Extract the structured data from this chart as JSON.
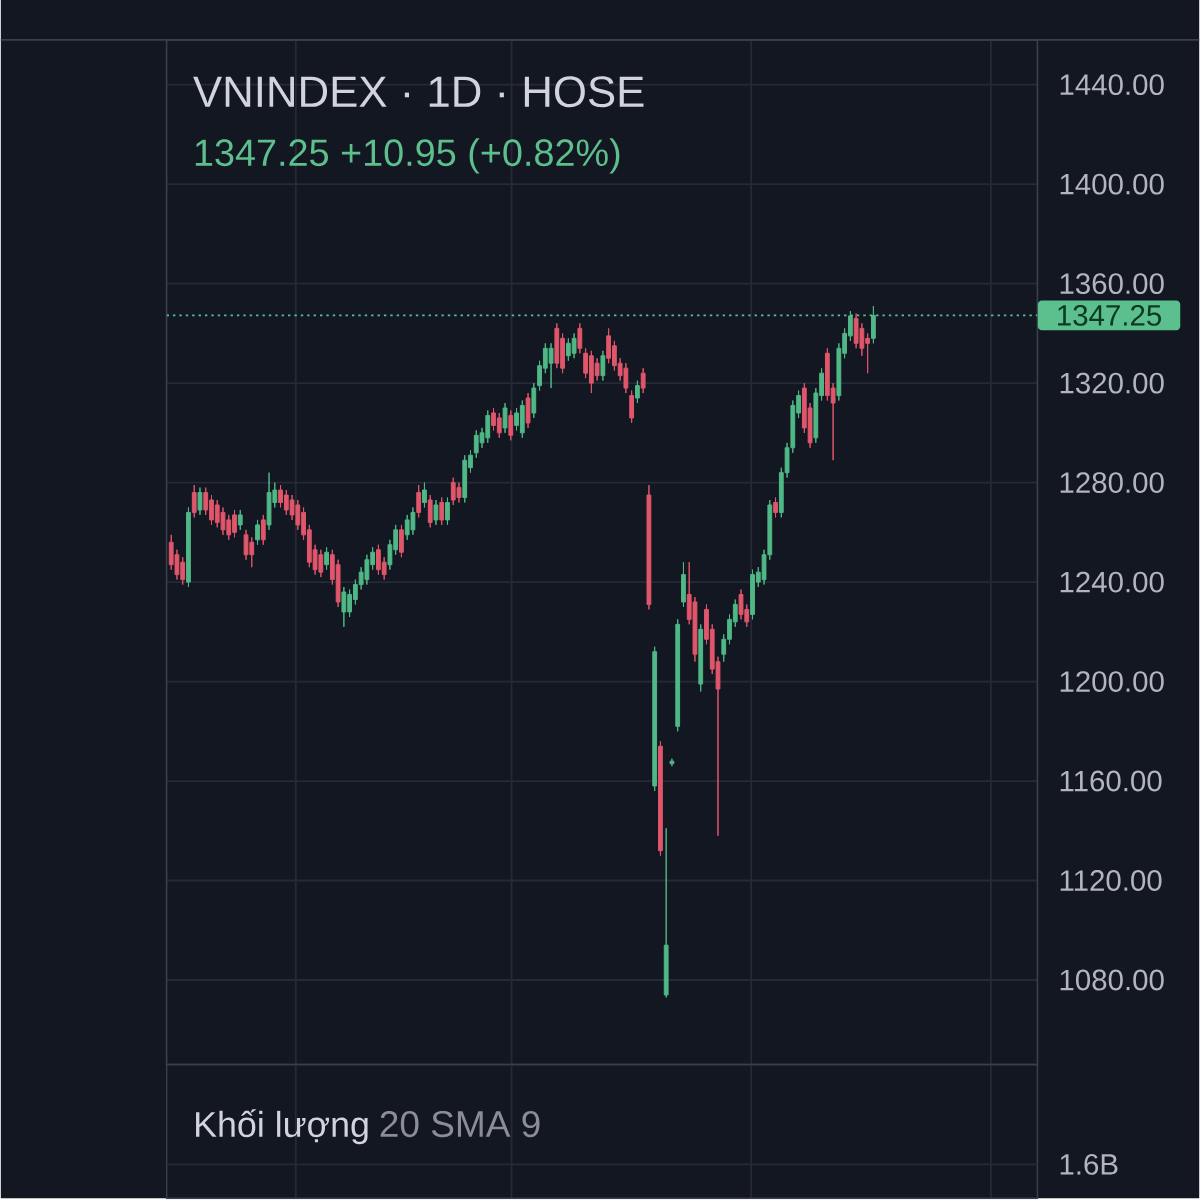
{
  "chart_data": [
    {
      "type": "candlestick",
      "title": "VNINDEX · 1D · HOSE",
      "subtitle": "1347.25 +10.95 (+0.82%)",
      "categories": [
        null,
        null,
        null,
        null,
        null,
        null,
        null,
        null,
        null,
        null,
        null,
        null,
        null,
        null,
        null,
        null,
        null,
        null,
        null,
        null,
        null,
        null,
        null,
        null,
        null,
        null,
        null,
        null,
        null,
        null,
        null,
        null,
        null,
        null,
        null,
        null,
        null,
        null,
        null,
        null,
        null,
        null,
        null,
        null,
        null,
        null,
        null,
        null,
        null,
        null,
        null,
        null,
        null,
        null,
        null,
        null,
        null,
        null,
        null,
        null,
        null,
        null,
        null,
        null,
        null,
        null,
        null,
        null,
        null,
        null,
        null,
        null,
        null,
        null,
        null,
        null,
        null,
        null,
        null,
        null,
        null,
        null,
        null,
        null,
        null,
        null,
        null,
        null,
        null,
        null,
        null,
        null,
        null,
        null,
        null,
        null,
        null,
        null,
        null,
        null,
        null,
        null,
        null,
        null,
        null,
        null,
        null,
        null,
        null,
        null,
        null,
        null,
        null,
        null,
        null,
        null,
        null,
        null,
        null,
        null,
        null,
        null,
        null,
        null,
        null,
        null,
        null,
        null,
        null,
        null,
        null,
        null,
        null,
        null,
        null,
        null,
        null,
        null,
        null,
        null,
        null,
        null,
        null,
        null,
        null,
        null,
        null,
        null,
        null,
        null,
        null
      ],
      "ohlc": [
        [
          1256,
          1259,
          1245,
          1247
        ],
        [
          1251,
          1253,
          1241,
          1243
        ],
        [
          1248,
          1250,
          1239,
          1241
        ],
        [
          1240,
          1270,
          1238,
          1268
        ],
        [
          1276,
          1279,
          1266,
          1268
        ],
        [
          1269,
          1278,
          1267,
          1276
        ],
        [
          1276,
          1278,
          1267,
          1269
        ],
        [
          1273,
          1275,
          1263,
          1265
        ],
        [
          1271,
          1273,
          1262,
          1264
        ],
        [
          1268,
          1270,
          1259,
          1261
        ],
        [
          1265,
          1267,
          1257,
          1259
        ],
        [
          1267,
          1269,
          1258,
          1260
        ],
        [
          1263,
          1269,
          1261,
          1267
        ],
        [
          1259,
          1261,
          1249,
          1251
        ],
        [
          1256,
          1258,
          1246,
          1251
        ],
        [
          1257,
          1265,
          1255,
          1263
        ],
        [
          1265,
          1267,
          1255,
          1257
        ],
        [
          1263,
          1284,
          1261,
          1276
        ],
        [
          1272,
          1280,
          1270,
          1277
        ],
        [
          1277,
          1279,
          1270,
          1272
        ],
        [
          1275,
          1277,
          1267,
          1269
        ],
        [
          1273,
          1275,
          1265,
          1267
        ],
        [
          1271,
          1273,
          1261,
          1263
        ],
        [
          1268,
          1270,
          1257,
          1259
        ],
        [
          1261,
          1263,
          1246,
          1248
        ],
        [
          1253,
          1255,
          1243,
          1245
        ],
        [
          1251,
          1253,
          1242,
          1244
        ],
        [
          1247,
          1254,
          1245,
          1252
        ],
        [
          1251,
          1253,
          1239,
          1241
        ],
        [
          1247,
          1249,
          1230,
          1232
        ],
        [
          1228,
          1238,
          1222,
          1236
        ],
        [
          1228,
          1237,
          1226,
          1235
        ],
        [
          1233,
          1241,
          1231,
          1239
        ],
        [
          1239,
          1246,
          1237,
          1244
        ],
        [
          1241,
          1251,
          1239,
          1249
        ],
        [
          1247,
          1254,
          1245,
          1252
        ],
        [
          1253,
          1255,
          1243,
          1245
        ],
        [
          1248,
          1250,
          1241,
          1243
        ],
        [
          1247,
          1257,
          1245,
          1255
        ],
        [
          1253,
          1263,
          1251,
          1261
        ],
        [
          1261,
          1263,
          1250,
          1252
        ],
        [
          1259,
          1267,
          1257,
          1265
        ],
        [
          1261,
          1270,
          1259,
          1268
        ],
        [
          1276,
          1279,
          1266,
          1268
        ],
        [
          1272,
          1280,
          1270,
          1277
        ],
        [
          1273,
          1275,
          1262,
          1264
        ],
        [
          1265,
          1273,
          1263,
          1271
        ],
        [
          1272,
          1274,
          1263,
          1265
        ],
        [
          1265,
          1274,
          1263,
          1272
        ],
        [
          1280,
          1282,
          1271,
          1273
        ],
        [
          1278,
          1280,
          1272,
          1274
        ],
        [
          1274,
          1291,
          1272,
          1289
        ],
        [
          1286,
          1293,
          1284,
          1291
        ],
        [
          1292,
          1301,
          1290,
          1299
        ],
        [
          1296,
          1302,
          1294,
          1300
        ],
        [
          1298,
          1309,
          1296,
          1307
        ],
        [
          1308,
          1310,
          1301,
          1303
        ],
        [
          1306,
          1308,
          1298,
          1300
        ],
        [
          1302,
          1312,
          1300,
          1310
        ],
        [
          1307,
          1309,
          1297,
          1299
        ],
        [
          1303,
          1310,
          1301,
          1308
        ],
        [
          1300,
          1313,
          1298,
          1311
        ],
        [
          1314,
          1316,
          1302,
          1304
        ],
        [
          1308,
          1320,
          1306,
          1318
        ],
        [
          1319,
          1329,
          1317,
          1327
        ],
        [
          1326,
          1336,
          1324,
          1334
        ],
        [
          1328,
          1336,
          1318,
          1334
        ],
        [
          1342,
          1344,
          1326,
          1328
        ],
        [
          1338,
          1340,
          1324,
          1326
        ],
        [
          1331,
          1338,
          1329,
          1336
        ],
        [
          1332,
          1340,
          1330,
          1338
        ],
        [
          1342,
          1344,
          1332,
          1334
        ],
        [
          1332,
          1334,
          1322,
          1324
        ],
        [
          1331,
          1333,
          1316,
          1320
        ],
        [
          1328,
          1330,
          1321,
          1323
        ],
        [
          1323,
          1333,
          1321,
          1331
        ],
        [
          1339,
          1342,
          1328,
          1330
        ],
        [
          1335,
          1337,
          1325,
          1327
        ],
        [
          1328,
          1330,
          1321,
          1323
        ],
        [
          1326,
          1328,
          1316,
          1318
        ],
        [
          1315,
          1317,
          1304,
          1306
        ],
        [
          1314,
          1321,
          1312,
          1319
        ],
        [
          1324,
          1326,
          1316,
          1318
        ],
        [
          1275,
          1279,
          1229,
          1231
        ],
        [
          1158,
          1214,
          1156,
          1212
        ],
        [
          1174,
          1176,
          1130,
          1132
        ],
        [
          1074,
          1141,
          1073,
          1094
        ],
        [
          1167,
          1169,
          1166,
          1168
        ],
        [
          1182,
          1225,
          1180,
          1223
        ],
        [
          1232,
          1248,
          1230,
          1243
        ],
        [
          1235,
          1248,
          1223,
          1225
        ],
        [
          1232,
          1234,
          1208,
          1211
        ],
        [
          1199,
          1223,
          1196,
          1221
        ],
        [
          1229,
          1231,
          1215,
          1217
        ],
        [
          1221,
          1223,
          1203,
          1205
        ],
        [
          1208,
          1210,
          1138,
          1197
        ],
        [
          1211,
          1219,
          1208,
          1217
        ],
        [
          1217,
          1227,
          1215,
          1225
        ],
        [
          1224,
          1233,
          1222,
          1231
        ],
        [
          1235,
          1237,
          1225,
          1227
        ],
        [
          1229,
          1231,
          1222,
          1224
        ],
        [
          1227,
          1245,
          1225,
          1243
        ],
        [
          1240,
          1246,
          1238,
          1244
        ],
        [
          1241,
          1253,
          1239,
          1251
        ],
        [
          1251,
          1273,
          1249,
          1271
        ],
        [
          1272,
          1274,
          1266,
          1268
        ],
        [
          1268,
          1286,
          1266,
          1284
        ],
        [
          1284,
          1296,
          1282,
          1294
        ],
        [
          1294,
          1313,
          1292,
          1311
        ],
        [
          1308,
          1317,
          1306,
          1315
        ],
        [
          1318,
          1320,
          1300,
          1302
        ],
        [
          1310,
          1312,
          1294,
          1296
        ],
        [
          1298,
          1318,
          1296,
          1316
        ],
        [
          1315,
          1326,
          1313,
          1324
        ],
        [
          1332,
          1334,
          1313,
          1315
        ],
        [
          1318,
          1320,
          1289,
          1312
        ],
        [
          1315,
          1336,
          1313,
          1334
        ],
        [
          1332,
          1342,
          1330,
          1340
        ],
        [
          1339,
          1349,
          1337,
          1347
        ],
        [
          1346,
          1348,
          1334,
          1336
        ],
        [
          1342,
          1344,
          1331,
          1334
        ],
        [
          1338,
          1340,
          1324,
          1336
        ],
        [
          1338,
          1351,
          1336,
          1347.25
        ],
        null,
        null,
        null,
        null,
        null,
        null,
        null,
        null,
        null,
        null,
        null,
        null,
        null,
        null,
        null,
        null,
        null,
        null,
        null,
        null,
        null,
        null,
        null,
        null,
        null,
        null,
        null,
        null
      ],
      "colors": [
        "#e0566b",
        "#e0566b",
        "#e0566b",
        "#4fb886",
        "#e0566b",
        "#4fb886",
        "#e0566b",
        "#e0566b",
        "#e0566b",
        "#e0566b",
        "#e0566b",
        "#e0566b",
        "#4fb886",
        "#e0566b",
        "#e0566b",
        "#4fb886",
        "#e0566b",
        "#4fb886",
        "#4fb886",
        "#e0566b",
        "#e0566b",
        "#e0566b",
        "#e0566b",
        "#e0566b",
        "#e0566b",
        "#e0566b",
        "#e0566b",
        "#4fb886",
        "#e0566b",
        "#e0566b",
        "#4fb886",
        "#4fb886",
        "#4fb886",
        "#4fb886",
        "#4fb886",
        "#4fb886",
        "#e0566b",
        "#e0566b",
        "#4fb886",
        "#4fb886",
        "#e0566b",
        "#4fb886",
        "#4fb886",
        "#e0566b",
        "#4fb886",
        "#e0566b",
        "#4fb886",
        "#e0566b",
        "#4fb886",
        "#e0566b",
        "#e0566b",
        "#4fb886",
        "#4fb886",
        "#4fb886",
        "#4fb886",
        "#4fb886",
        "#e0566b",
        "#e0566b",
        "#4fb886",
        "#e0566b",
        "#4fb886",
        "#4fb886",
        "#e0566b",
        "#4fb886",
        "#4fb886",
        "#4fb886",
        "#4fb886",
        "#e0566b",
        "#e0566b",
        "#4fb886",
        "#4fb886",
        "#e0566b",
        "#e0566b",
        "#e0566b",
        "#e0566b",
        "#4fb886",
        "#e0566b",
        "#e0566b",
        "#e0566b",
        "#e0566b",
        "#e0566b",
        "#4fb886",
        "#e0566b",
        "#e0566b",
        "#4fb886",
        "#e0566b",
        "#4fb886",
        "#4fb886",
        "#4fb886",
        "#4fb886",
        "#e0566b",
        "#e0566b",
        "#4fb886",
        "#e0566b",
        "#e0566b",
        "#e0566b",
        "#4fb886",
        "#4fb886",
        "#4fb886",
        "#e0566b",
        "#e0566b",
        "#4fb886",
        "#4fb886",
        "#4fb886",
        "#4fb886",
        "#e0566b",
        "#4fb886",
        "#4fb886",
        "#4fb886",
        "#4fb886",
        "#e0566b",
        "#e0566b",
        "#4fb886",
        "#4fb886",
        "#e0566b",
        "#e0566b",
        "#4fb886",
        "#4fb886",
        "#4fb886",
        "#e0566b",
        "#e0566b",
        "#e0566b",
        "#4fb886",
        null,
        null,
        null,
        null,
        null,
        null,
        null,
        null,
        null,
        null,
        null,
        null,
        null,
        null,
        null,
        null,
        null,
        null,
        null,
        null,
        null,
        null,
        null,
        null,
        null,
        null,
        null,
        null
      ],
      "ylim": [
        1046,
        1458
      ],
      "yticks": [
        {
          "value": 1080,
          "label": "1080.00"
        },
        {
          "value": 1120,
          "label": "1120.00"
        },
        {
          "value": 1160,
          "label": "1160.00"
        },
        {
          "value": 1200,
          "label": "1200.00"
        },
        {
          "value": 1240,
          "label": "1240.00"
        },
        {
          "value": 1280,
          "label": "1280.00"
        },
        {
          "value": 1320,
          "label": "1320.00"
        },
        {
          "value": 1360,
          "label": "1360.00"
        },
        {
          "value": 1400,
          "label": "1400.00"
        },
        {
          "value": 1440,
          "label": "1440.00"
        }
      ],
      "ref_lines": [
        {
          "axis": "y",
          "value": 1347.25,
          "label": "1347.25",
          "color": "#5cc08e",
          "line_style": "dotted"
        }
      ],
      "grid": true,
      "tick_labels": "y"
    },
    {
      "type": "other",
      "title": "Khối lượng",
      "subtitle": "20 SMA 9",
      "annotations": [
        "1.6B"
      ]
    }
  ]
}
